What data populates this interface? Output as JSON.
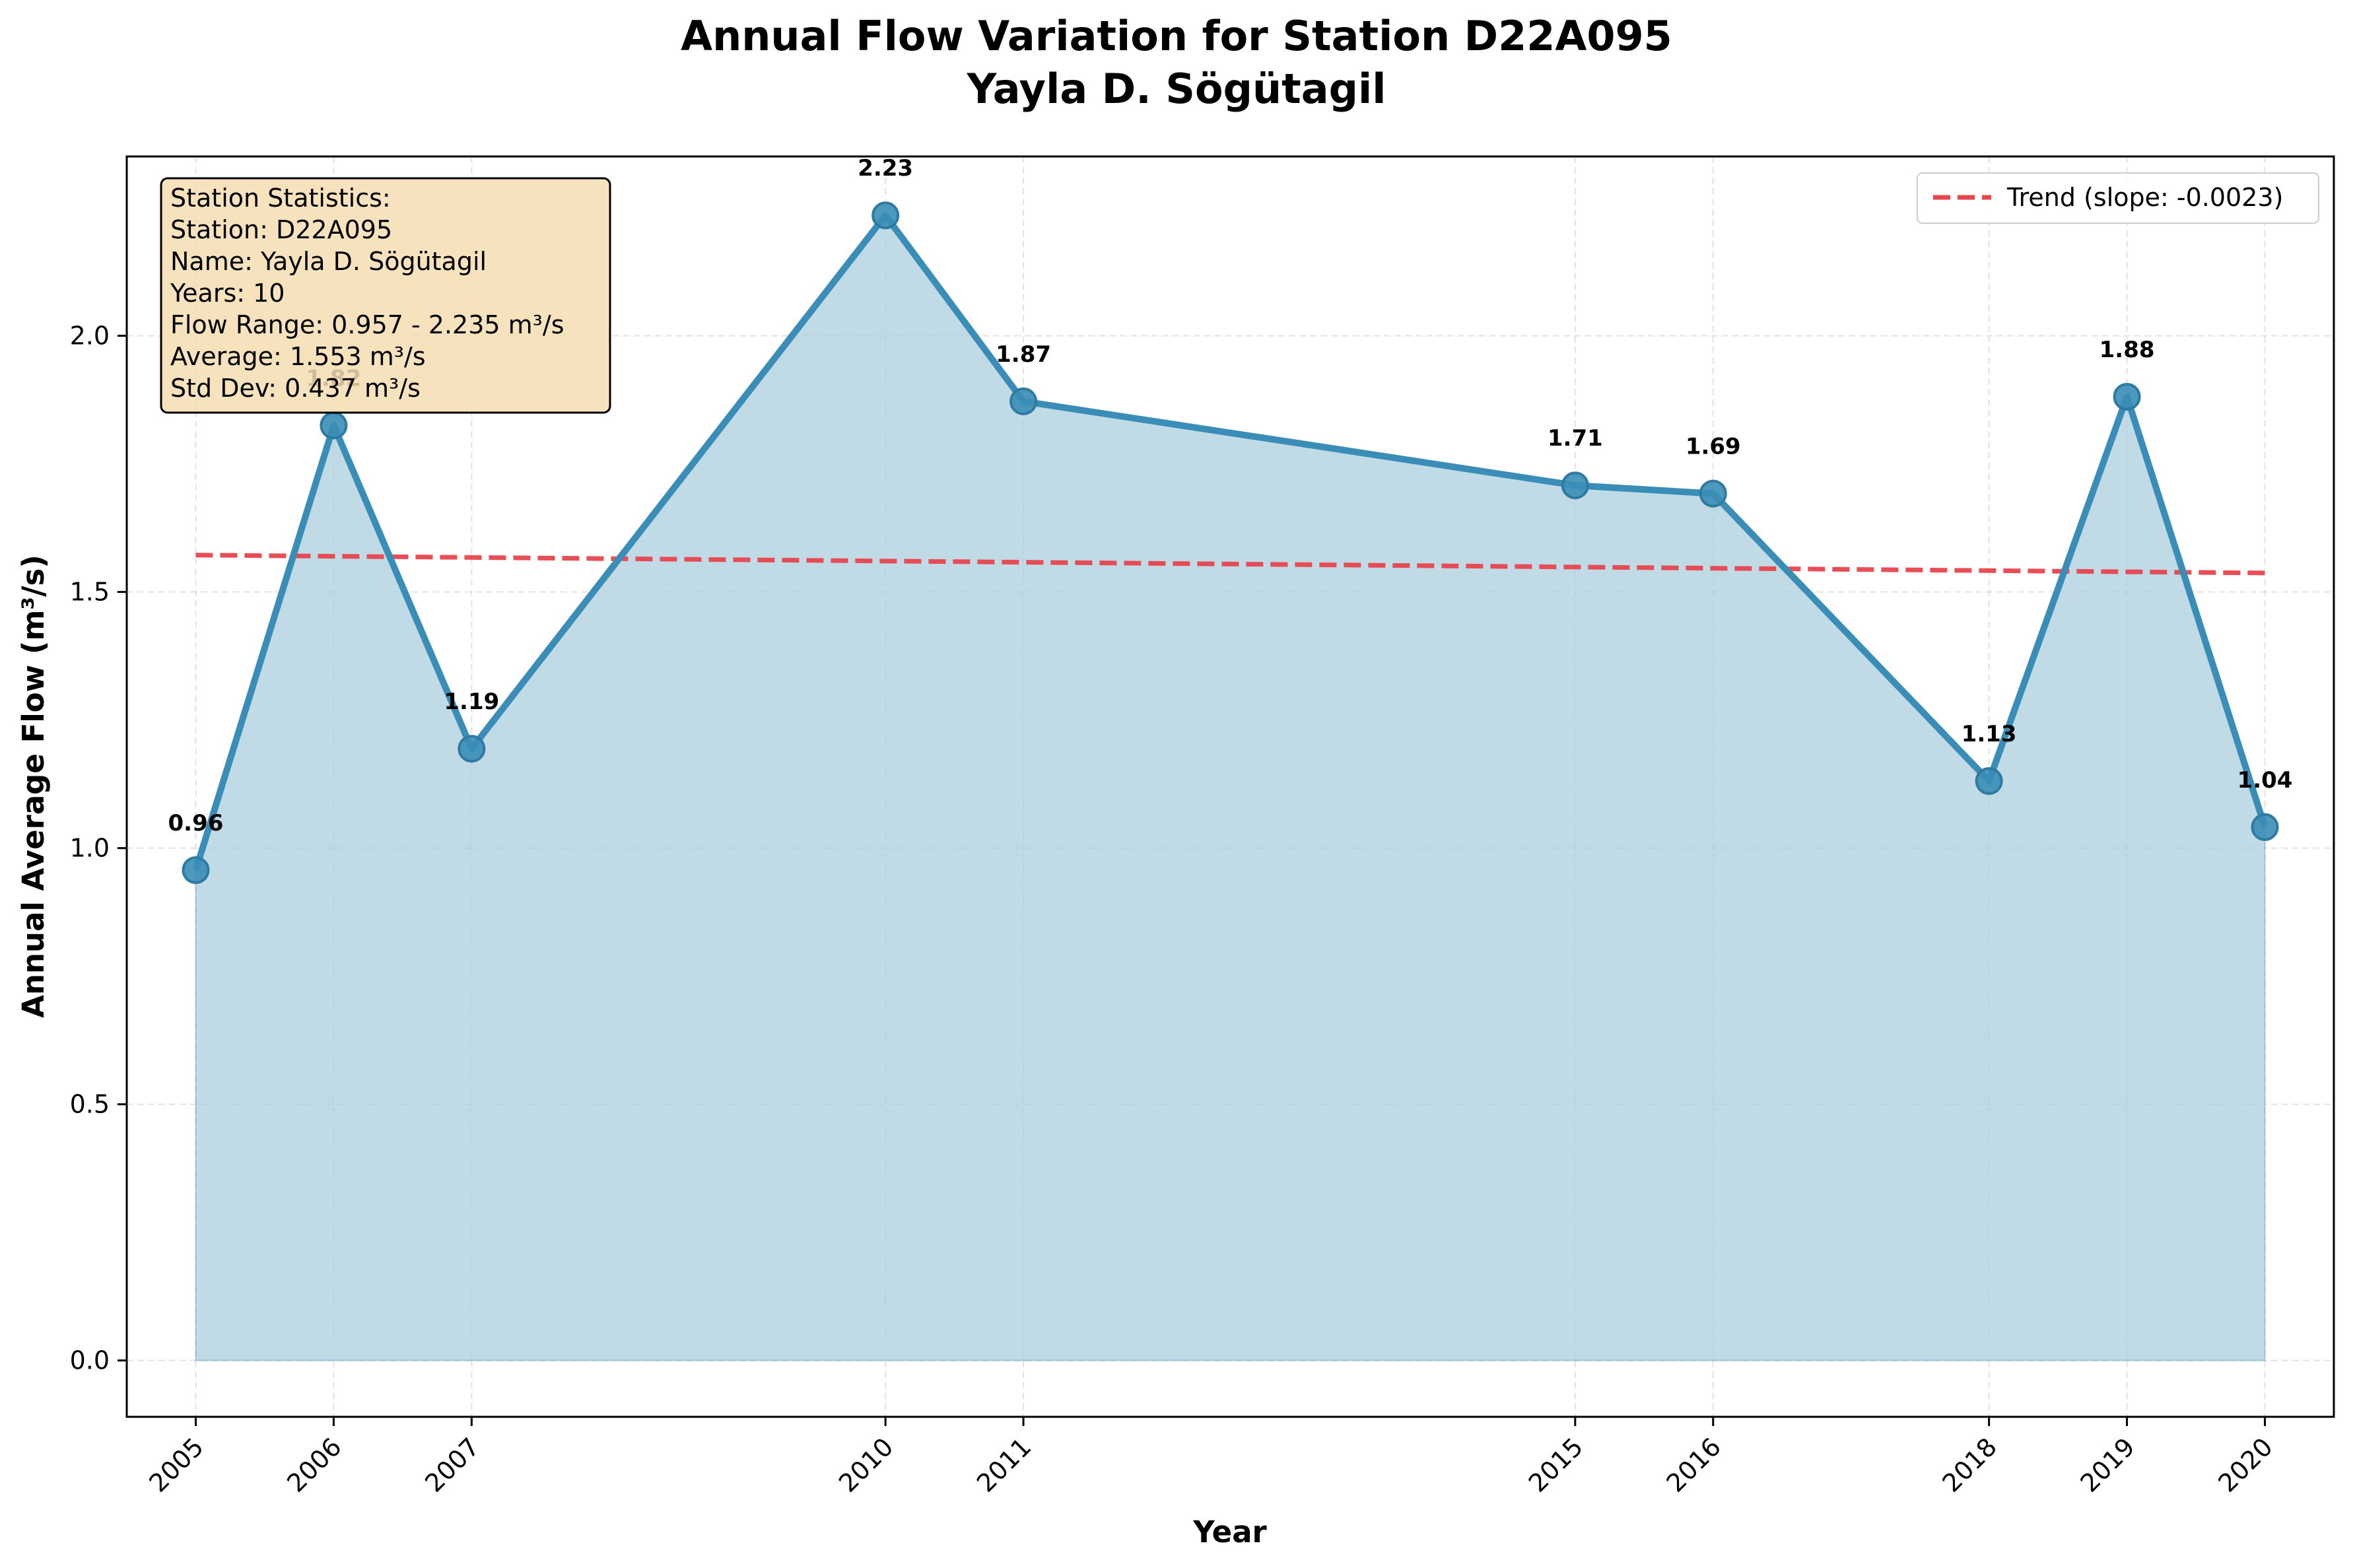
{
  "chart_data": {
    "type": "line",
    "title_line1": "Annual Flow Variation for Station D22A095",
    "title_line2": "Yayla D. Sögütagil",
    "xlabel": "Year",
    "ylabel": "Annual Average Flow (m³/s)",
    "x": [
      2005,
      2006,
      2007,
      2010,
      2011,
      2015,
      2016,
      2018,
      2019,
      2020
    ],
    "values": [
      0.957,
      1.825,
      1.194,
      2.235,
      1.872,
      1.708,
      1.692,
      1.131,
      1.881,
      1.041
    ],
    "point_labels": [
      "0.96",
      "1.82",
      "1.19",
      "2.23",
      "1.87",
      "1.71",
      "1.69",
      "1.13",
      "1.88",
      "1.04"
    ],
    "xticks": [
      "2005",
      "2006",
      "2007",
      "2010",
      "2011",
      "2015",
      "2016",
      "2018",
      "2019",
      "2020"
    ],
    "ylim": [
      -0.11,
      2.35
    ],
    "yticks": [
      0.0,
      0.5,
      1.0,
      1.5,
      2.0
    ],
    "ytick_labels": [
      "0.0",
      "0.5",
      "1.0",
      "1.5",
      "2.0"
    ],
    "trend": {
      "label": "Trend (slope: -0.0023)",
      "y_start": 1.572,
      "y_end": 1.537
    },
    "grid": true,
    "legend_position": "top-right",
    "stats_box": [
      "Station Statistics:",
      "Station: D22A095",
      "Name: Yayla D. Sögütagil",
      "Years: 10",
      "Flow Range: 0.957 - 2.235 m³/s",
      "Average: 1.553 m³/s",
      "Std Dev: 0.437 m³/s"
    ],
    "colors": {
      "line": "#3a8db6",
      "fill": "#a8cddd",
      "trend": "#e8454d",
      "stats_bg": "#f5deb3"
    }
  }
}
